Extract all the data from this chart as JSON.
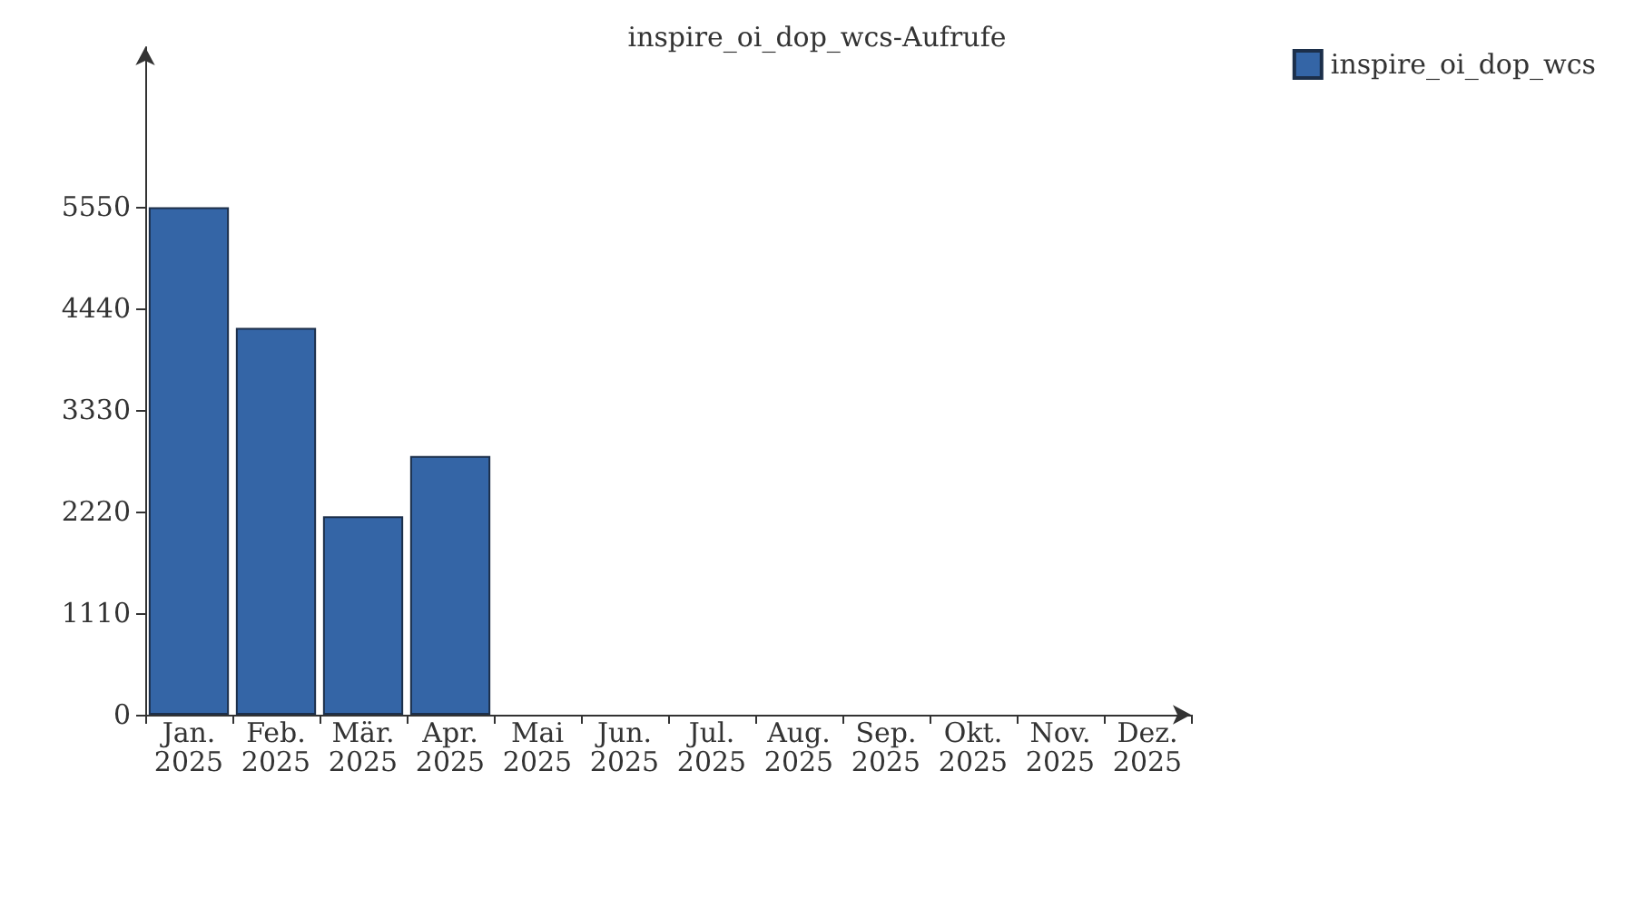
{
  "chart_data": {
    "type": "bar",
    "title": "inspire_oi_dop_wcs-Aufrufe",
    "categories": [
      "Jan.\n2025",
      "Feb.\n2025",
      "Mär.\n2025",
      "Apr.\n2025",
      "Mai\n2025",
      "Jun.\n2025",
      "Jul.\n2025",
      "Aug.\n2025",
      "Sep.\n2025",
      "Okt.\n2025",
      "Nov.\n2025",
      "Dez.\n2025"
    ],
    "series": [
      {
        "name": "inspire_oi_dop_wcs",
        "color": "#3465a6",
        "values": [
          5550,
          4230,
          2170,
          2830,
          0,
          0,
          0,
          0,
          0,
          0,
          0,
          0
        ]
      }
    ],
    "ylim": [
      0,
      7300
    ],
    "yticks": [
      0,
      1110,
      2220,
      3330,
      4440,
      5550
    ],
    "grid": false,
    "legend": "top right"
  }
}
